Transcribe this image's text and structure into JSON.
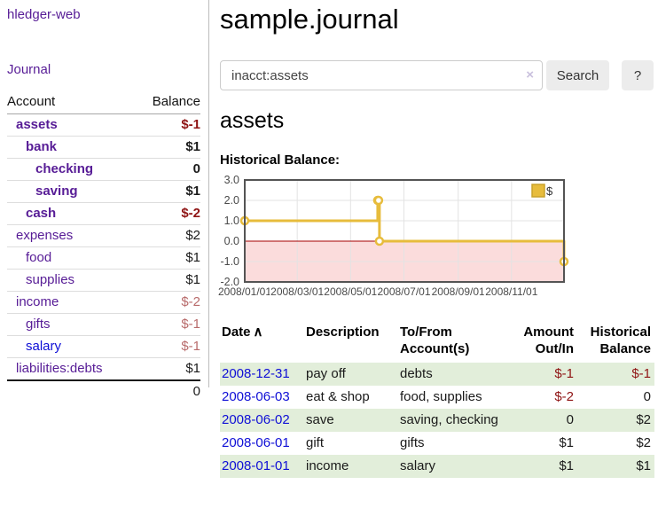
{
  "app": {
    "title": "hledger-web"
  },
  "sidebar": {
    "journal_label": "Journal",
    "table": {
      "headers": [
        "Account",
        "Balance"
      ],
      "rows": [
        {
          "account": "assets",
          "balance": "$-1"
        },
        {
          "account": "bank",
          "balance": "$1"
        },
        {
          "account": "checking",
          "balance": "0"
        },
        {
          "account": "saving",
          "balance": "$1"
        },
        {
          "account": "cash",
          "balance": "$-2"
        },
        {
          "account": "expenses",
          "balance": "$2"
        },
        {
          "account": "food",
          "balance": "$1"
        },
        {
          "account": "supplies",
          "balance": "$1"
        },
        {
          "account": "income",
          "balance": "$-2"
        },
        {
          "account": "gifts",
          "balance": "$-1"
        },
        {
          "account": "salary",
          "balance": "$-1"
        },
        {
          "account": "liabilities:debts",
          "balance": "$1"
        }
      ],
      "total": "0"
    }
  },
  "main": {
    "title": "sample.journal",
    "search": {
      "value": "inacct:assets",
      "clear_icon": "×",
      "button_label": "Search",
      "help_label": "?"
    },
    "account_heading": "assets"
  },
  "chart_data": {
    "type": "line",
    "style": "steps",
    "title": "Historical Balance:",
    "series": [
      {
        "name": "$",
        "points": [
          [
            "2008-01-01",
            1
          ],
          [
            "2008-06-01",
            2
          ],
          [
            "2008-06-02",
            2
          ],
          [
            "2008-06-03",
            0
          ],
          [
            "2008-12-31",
            -1
          ]
        ]
      }
    ],
    "xrange": [
      "2008-01-01",
      "2008-12-31"
    ],
    "ylim": [
      -2,
      3
    ],
    "yticks": [
      "3.0",
      "2.0",
      "1.0",
      "0.0",
      "-1.0",
      "-2.0"
    ],
    "xticks": [
      "2008/01/01",
      "2008/03/01",
      "2008/05/01",
      "2008/07/01",
      "2008/09/01",
      "2008/11/01"
    ],
    "legend": {
      "label": "$",
      "position": "top-right"
    },
    "colors": {
      "line": "#e7bc3c",
      "legend_border": "#c9a22a",
      "grid": "#e3e3e3",
      "plot_border": "#545454",
      "zero_line": "#a40000",
      "negative_region": "#fbdcdc",
      "axis_text": "#4a4a4a"
    }
  },
  "transactions": {
    "headers": [
      "Date",
      "Description",
      "To/From Account(s)",
      "Amount Out/In",
      "Historical Balance"
    ],
    "sort_icon": "∧",
    "rows": [
      {
        "date": "2008-12-31",
        "description": "pay off",
        "accounts": "debts",
        "amount": "$-1",
        "balance": "$-1"
      },
      {
        "date": "2008-06-03",
        "description": "eat & shop",
        "accounts": "food, supplies",
        "amount": "$-2",
        "balance": "0"
      },
      {
        "date": "2008-06-02",
        "description": "save",
        "accounts": "saving, checking",
        "amount": "0",
        "balance": "$2"
      },
      {
        "date": "2008-06-01",
        "description": "gift",
        "accounts": "gifts",
        "amount": "$1",
        "balance": "$2"
      },
      {
        "date": "2008-01-01",
        "description": "income",
        "accounts": "salary",
        "amount": "$1",
        "balance": "$1"
      }
    ]
  },
  "colors": {
    "link_purple": "#571c96",
    "link_blue": "#0f0fd6",
    "negative_strong": "#8f1414",
    "negative_soft": "#b86b6b",
    "row_green": "#e2eeda"
  }
}
